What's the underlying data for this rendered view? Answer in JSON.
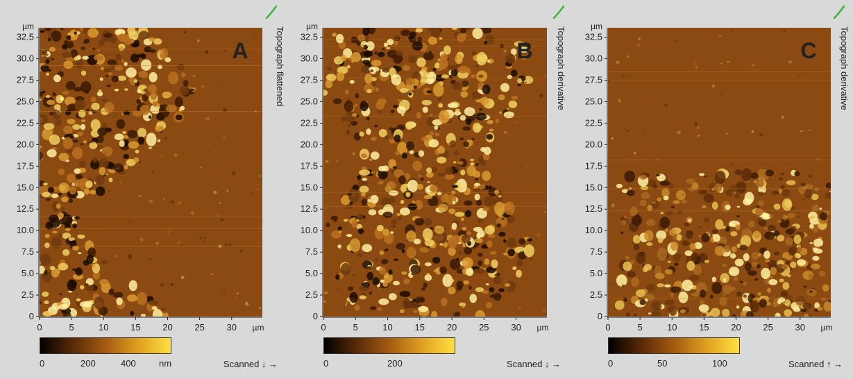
{
  "panels": [
    {
      "id": "A",
      "side_label": "Topograph flattened",
      "y_unit": "µm",
      "x_unit": "µm",
      "y_ticks": [
        "0",
        "2.5",
        "5.0",
        "7.5",
        "10.0",
        "12.5",
        "15.0",
        "17.5",
        "20.0",
        "22.5",
        "25.0",
        "27.5",
        "30.0",
        "32.5"
      ],
      "x_ticks": [
        "0",
        "5",
        "10",
        "15",
        "20",
        "25",
        "30"
      ],
      "colorbar_ticks": [
        "0",
        "200",
        "400"
      ],
      "colorbar_unit": "nm",
      "scanned_label": "Scanned ↓ →"
    },
    {
      "id": "B",
      "side_label": "Topograph derivative",
      "y_unit": "µm",
      "x_unit": "µm",
      "y_ticks": [
        "0",
        "2.5",
        "5.0",
        "7.5",
        "10.0",
        "12.5",
        "15.0",
        "17.5",
        "20.0",
        "22.5",
        "25.0",
        "27.5",
        "30.0",
        "32.5"
      ],
      "x_ticks": [
        "0",
        "5",
        "10",
        "15",
        "20",
        "25",
        "30"
      ],
      "colorbar_ticks": [
        "0",
        "200"
      ],
      "colorbar_unit": "",
      "scanned_label": "Scanned ↓ →"
    },
    {
      "id": "C",
      "side_label": "Topograph derivative",
      "y_unit": "µm",
      "x_unit": "µm",
      "y_ticks": [
        "0",
        "2.5",
        "5.0",
        "7.5",
        "10.0",
        "12.5",
        "15.0",
        "17.5",
        "20.0",
        "22.5",
        "25.0",
        "27.5",
        "30.0",
        "32.5"
      ],
      "x_ticks": [
        "0",
        "5",
        "10",
        "15",
        "20",
        "25",
        "30"
      ],
      "colorbar_ticks": [
        "0",
        "50",
        "100"
      ],
      "colorbar_unit": "",
      "scanned_label": "Scanned ↑ →"
    }
  ],
  "colors": {
    "background": "#d9d9d9",
    "colorbar_gradient": [
      "#000000",
      "#5a2a08",
      "#a55a10",
      "#e0a020",
      "#ffe040"
    ],
    "afm_base": "#8a4a12",
    "green_mark": "#3cb43c"
  }
}
